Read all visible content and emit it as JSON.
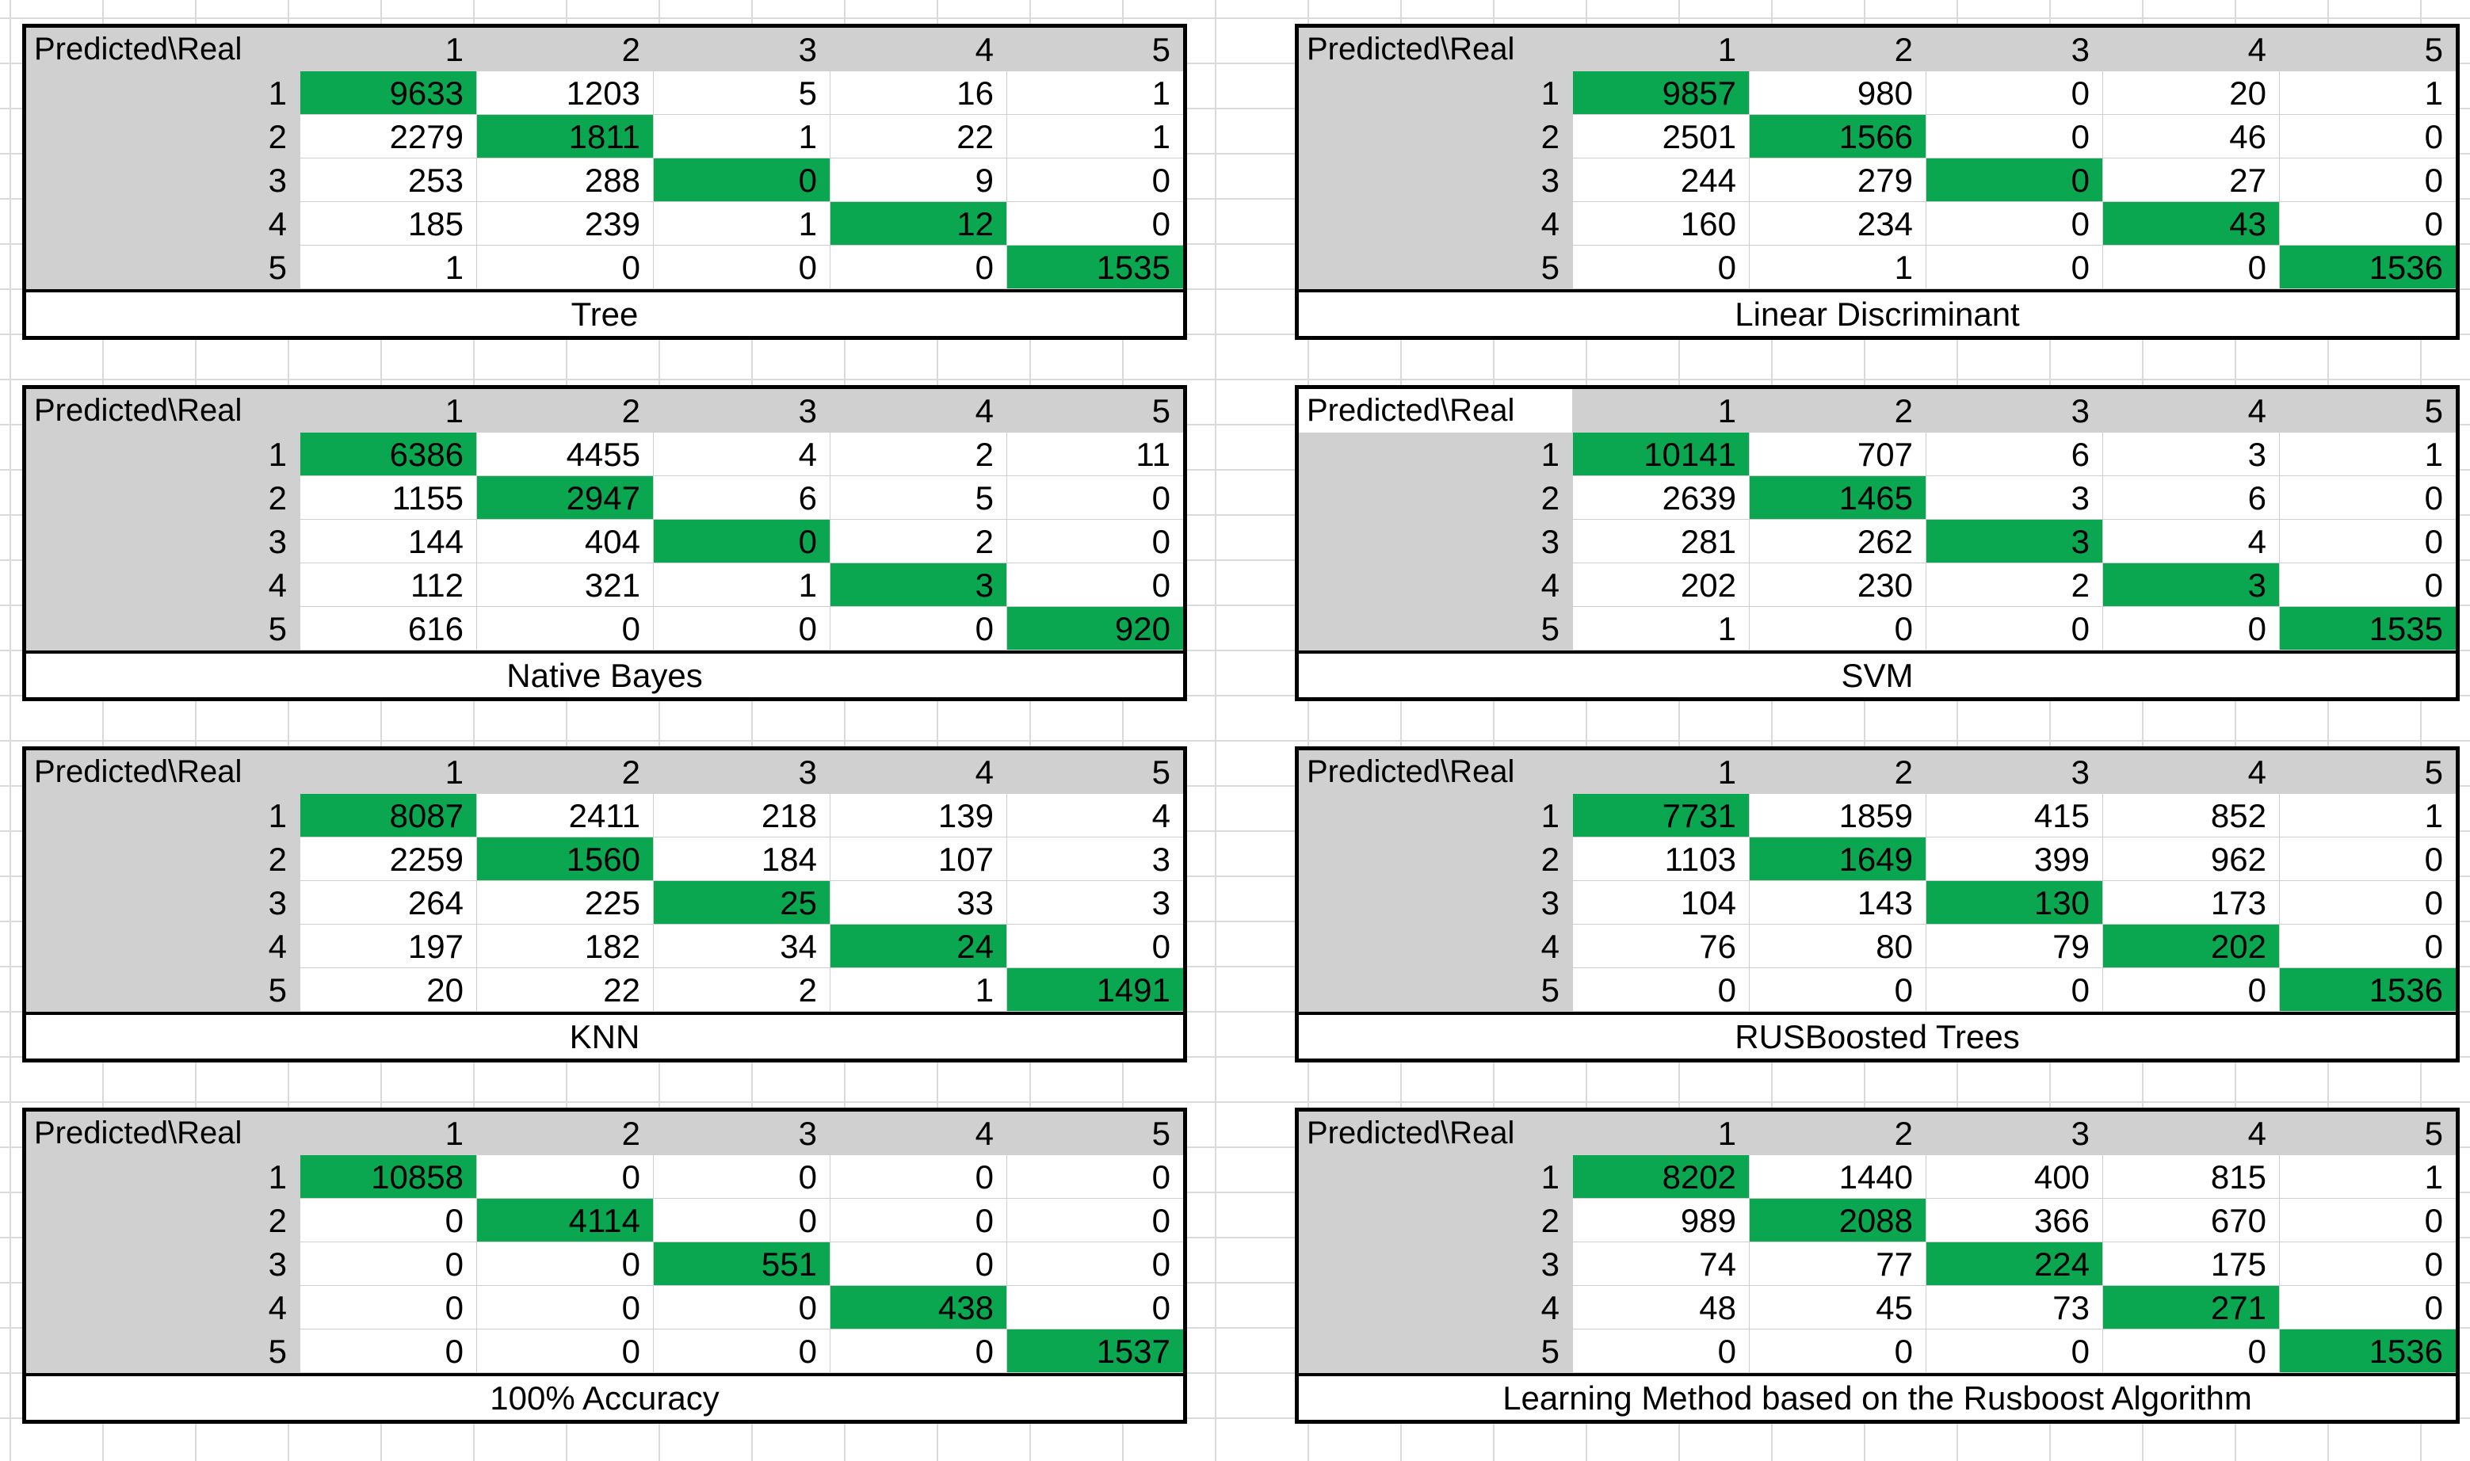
{
  "colors": {
    "diagonal_green": "#0aa650",
    "header_gray": "#d0d0d0",
    "cell_border": "#cfcfcf",
    "table_border": "#000000",
    "background_gridline": "#dadada"
  },
  "chart_data": [
    {
      "id": "tree",
      "type": "heatmap",
      "title": "Tree",
      "corner": "Predicted\\Real",
      "col_labels": [
        "1",
        "2",
        "3",
        "4",
        "5"
      ],
      "row_labels": [
        "1",
        "2",
        "3",
        "4",
        "5"
      ],
      "highlight": "diagonal",
      "corner_white": false,
      "rows": [
        [
          9633,
          1203,
          5,
          16,
          1
        ],
        [
          2279,
          1811,
          1,
          22,
          1
        ],
        [
          253,
          288,
          0,
          9,
          0
        ],
        [
          185,
          239,
          1,
          12,
          0
        ],
        [
          1,
          0,
          0,
          0,
          1535
        ]
      ]
    },
    {
      "id": "linear-discriminant",
      "type": "heatmap",
      "title": "Linear Discriminant",
      "corner": "Predicted\\Real",
      "col_labels": [
        "1",
        "2",
        "3",
        "4",
        "5"
      ],
      "row_labels": [
        "1",
        "2",
        "3",
        "4",
        "5"
      ],
      "highlight": "diagonal",
      "corner_white": false,
      "rows": [
        [
          9857,
          980,
          0,
          20,
          1
        ],
        [
          2501,
          1566,
          0,
          46,
          0
        ],
        [
          244,
          279,
          0,
          27,
          0
        ],
        [
          160,
          234,
          0,
          43,
          0
        ],
        [
          0,
          1,
          0,
          0,
          1536
        ]
      ]
    },
    {
      "id": "native-bayes",
      "type": "heatmap",
      "title": "Native Bayes",
      "corner": "Predicted\\Real",
      "col_labels": [
        "1",
        "2",
        "3",
        "4",
        "5"
      ],
      "row_labels": [
        "1",
        "2",
        "3",
        "4",
        "5"
      ],
      "highlight": "diagonal",
      "corner_white": false,
      "rows": [
        [
          6386,
          4455,
          4,
          2,
          11
        ],
        [
          1155,
          2947,
          6,
          5,
          0
        ],
        [
          144,
          404,
          0,
          2,
          0
        ],
        [
          112,
          321,
          1,
          3,
          0
        ],
        [
          616,
          0,
          0,
          0,
          920
        ]
      ]
    },
    {
      "id": "svm",
      "type": "heatmap",
      "title": "SVM",
      "corner": "Predicted\\Real",
      "col_labels": [
        "1",
        "2",
        "3",
        "4",
        "5"
      ],
      "row_labels": [
        "1",
        "2",
        "3",
        "4",
        "5"
      ],
      "highlight": "diagonal",
      "corner_white": true,
      "rows": [
        [
          10141,
          707,
          6,
          3,
          1
        ],
        [
          2639,
          1465,
          3,
          6,
          0
        ],
        [
          281,
          262,
          3,
          4,
          0
        ],
        [
          202,
          230,
          2,
          3,
          0
        ],
        [
          1,
          0,
          0,
          0,
          1535
        ]
      ]
    },
    {
      "id": "knn",
      "type": "heatmap",
      "title": "KNN",
      "corner": "Predicted\\Real",
      "col_labels": [
        "1",
        "2",
        "3",
        "4",
        "5"
      ],
      "row_labels": [
        "1",
        "2",
        "3",
        "4",
        "5"
      ],
      "highlight": "diagonal",
      "corner_white": false,
      "rows": [
        [
          8087,
          2411,
          218,
          139,
          4
        ],
        [
          2259,
          1560,
          184,
          107,
          3
        ],
        [
          264,
          225,
          25,
          33,
          3
        ],
        [
          197,
          182,
          34,
          24,
          0
        ],
        [
          20,
          22,
          2,
          1,
          1491
        ]
      ]
    },
    {
      "id": "rusboosted-trees",
      "type": "heatmap",
      "title": "RUSBoosted Trees",
      "corner": "Predicted\\Real",
      "col_labels": [
        "1",
        "2",
        "3",
        "4",
        "5"
      ],
      "row_labels": [
        "1",
        "2",
        "3",
        "4",
        "5"
      ],
      "highlight": "diagonal",
      "corner_white": false,
      "rows": [
        [
          7731,
          1859,
          415,
          852,
          1
        ],
        [
          1103,
          1649,
          399,
          962,
          0
        ],
        [
          104,
          143,
          130,
          173,
          0
        ],
        [
          76,
          80,
          79,
          202,
          0
        ],
        [
          0,
          0,
          0,
          0,
          1536
        ]
      ]
    },
    {
      "id": "accuracy-100",
      "type": "heatmap",
      "title": "100% Accuracy",
      "corner": "Predicted\\Real",
      "col_labels": [
        "1",
        "2",
        "3",
        "4",
        "5"
      ],
      "row_labels": [
        "1",
        "2",
        "3",
        "4",
        "5"
      ],
      "highlight": "diagonal",
      "corner_white": false,
      "rows": [
        [
          10858,
          0,
          0,
          0,
          0
        ],
        [
          0,
          4114,
          0,
          0,
          0
        ],
        [
          0,
          0,
          551,
          0,
          0
        ],
        [
          0,
          0,
          0,
          438,
          0
        ],
        [
          0,
          0,
          0,
          0,
          1537
        ]
      ]
    },
    {
      "id": "rusboost-learning-method",
      "type": "heatmap",
      "title": "Learning Method based on the Rusboost Algorithm",
      "corner": "Predicted\\Real",
      "col_labels": [
        "1",
        "2",
        "3",
        "4",
        "5"
      ],
      "row_labels": [
        "1",
        "2",
        "3",
        "4",
        "5"
      ],
      "highlight": "diagonal",
      "corner_white": false,
      "rows": [
        [
          8202,
          1440,
          400,
          815,
          1
        ],
        [
          989,
          2088,
          366,
          670,
          0
        ],
        [
          74,
          77,
          224,
          175,
          0
        ],
        [
          48,
          45,
          73,
          271,
          0
        ],
        [
          0,
          0,
          0,
          0,
          1536
        ]
      ]
    }
  ]
}
